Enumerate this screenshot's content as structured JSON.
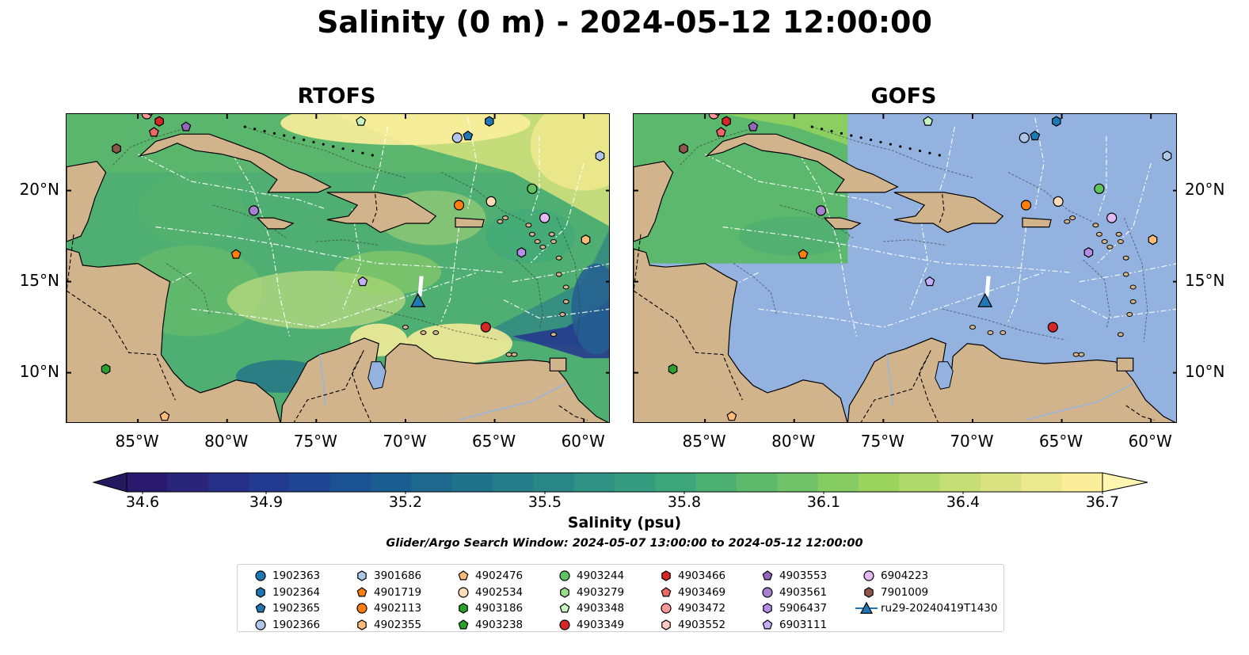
{
  "title": "Salinity (0 m) - 2024-05-12 12:00:00",
  "panels": [
    {
      "title": "RTOFS"
    },
    {
      "title": "GOFS"
    }
  ],
  "lon_ticks": [
    "85°W",
    "80°W",
    "75°W",
    "70°W",
    "65°W",
    "60°W"
  ],
  "lon_values": [
    -85,
    -80,
    -75,
    -70,
    -65,
    -60
  ],
  "lat_ticks": [
    "10°N",
    "15°N",
    "20°N"
  ],
  "lat_values": [
    10,
    15,
    20
  ],
  "extent": {
    "lon": [
      -89,
      -58.5
    ],
    "lat": [
      7.2,
      24.2
    ]
  },
  "colorbar": {
    "ticks": [
      "34.6",
      "34.9",
      "35.2",
      "35.5",
      "35.8",
      "36.1",
      "36.4",
      "36.7"
    ],
    "values": [
      34.6,
      34.9,
      35.2,
      35.5,
      35.8,
      36.1,
      36.4,
      36.7
    ],
    "label": "Salinity (psu)",
    "colors": [
      "#2a1a6e",
      "#24358f",
      "#1a5394",
      "#1f6f8b",
      "#2a8a87",
      "#3aa37b",
      "#62be6b",
      "#98d35e",
      "#cfe07b",
      "#fbee9a"
    ]
  },
  "subtitle": "Glider/Argo Search Window: 2024-05-07 13:00:00 to 2024-05-12 12:00:00",
  "colors": {
    "land": "#d2b48c",
    "gofs_ocean": "#93b2e0",
    "glider": "#1f77b4"
  },
  "legend": [
    {
      "id": "1902363",
      "marker": "circle",
      "color": "#1f77b4"
    },
    {
      "id": "1902364",
      "marker": "hexagon",
      "color": "#1f77b4"
    },
    {
      "id": "1902365",
      "marker": "pentagon",
      "color": "#1f77b4"
    },
    {
      "id": "1902366",
      "marker": "circle",
      "color": "#aec7e8"
    },
    {
      "id": "3901686",
      "marker": "hexagon",
      "color": "#aec7e8"
    },
    {
      "id": "4901719",
      "marker": "pentagon",
      "color": "#ff7f0e"
    },
    {
      "id": "4902113",
      "marker": "circle",
      "color": "#ff7f0e"
    },
    {
      "id": "4902355",
      "marker": "hexagon",
      "color": "#ffbb78"
    },
    {
      "id": "4902476",
      "marker": "pentagon",
      "color": "#ffbb78"
    },
    {
      "id": "4902534",
      "marker": "circle",
      "color": "#ffdcb8"
    },
    {
      "id": "4903186",
      "marker": "hexagon",
      "color": "#2ca02c"
    },
    {
      "id": "4903238",
      "marker": "pentagon",
      "color": "#2ca02c"
    },
    {
      "id": "4903244",
      "marker": "circle",
      "color": "#5fc35f"
    },
    {
      "id": "4903279",
      "marker": "hexagon",
      "color": "#98df8a"
    },
    {
      "id": "4903348",
      "marker": "pentagon",
      "color": "#c7f5c0"
    },
    {
      "id": "4903349",
      "marker": "circle",
      "color": "#d62728"
    },
    {
      "id": "4903466",
      "marker": "hexagon",
      "color": "#d62728"
    },
    {
      "id": "4903469",
      "marker": "pentagon",
      "color": "#ee6666"
    },
    {
      "id": "4903472",
      "marker": "circle",
      "color": "#ff9896"
    },
    {
      "id": "4903552",
      "marker": "hexagon",
      "color": "#ffc8c2"
    },
    {
      "id": "4903553",
      "marker": "pentagon",
      "color": "#9467bd"
    },
    {
      "id": "4903561",
      "marker": "circle",
      "color": "#a57fd0"
    },
    {
      "id": "5906437",
      "marker": "hexagon",
      "color": "#b58de6"
    },
    {
      "id": "6903111",
      "marker": "pentagon",
      "color": "#c5b0f5"
    },
    {
      "id": "6904223",
      "marker": "circle",
      "color": "#e3b8f5"
    },
    {
      "id": "7901009",
      "marker": "hexagon",
      "color": "#8c564b"
    },
    {
      "id": "ru29-20240419T1430",
      "marker": "triangle-line",
      "color": "#1f77b4"
    }
  ],
  "floats": [
    {
      "id": "1902364",
      "lon": -65.3,
      "lat": 23.8
    },
    {
      "id": "1902365",
      "lon": -66.5,
      "lat": 23.0
    },
    {
      "id": "1902366",
      "lon": -67.1,
      "lat": 22.9
    },
    {
      "id": "3901686",
      "lon": -59.1,
      "lat": 21.9
    },
    {
      "id": "4901719",
      "lon": -79.5,
      "lat": 16.5
    },
    {
      "id": "4902113",
      "lon": -67.0,
      "lat": 19.2
    },
    {
      "id": "4902355",
      "lon": -59.9,
      "lat": 17.3
    },
    {
      "id": "4902476",
      "lon": -83.5,
      "lat": 7.6
    },
    {
      "id": "4902534",
      "lon": -65.2,
      "lat": 19.4
    },
    {
      "id": "4903186",
      "lon": -86.8,
      "lat": 10.2
    },
    {
      "id": "4903238",
      "lon": -84.0,
      "lat": 24.6
    },
    {
      "id": "4903244",
      "lon": -62.9,
      "lat": 20.1
    },
    {
      "id": "4903348",
      "lon": -72.5,
      "lat": 23.8
    },
    {
      "id": "4903349",
      "lon": -65.5,
      "lat": 12.5
    },
    {
      "id": "4903466",
      "lon": -83.8,
      "lat": 23.8
    },
    {
      "id": "4903469",
      "lon": -84.1,
      "lat": 23.2
    },
    {
      "id": "4903472",
      "lon": -84.5,
      "lat": 24.2
    },
    {
      "id": "4903552",
      "lon": -84.3,
      "lat": 24.4
    },
    {
      "id": "4903553",
      "lon": -82.3,
      "lat": 23.5
    },
    {
      "id": "4903561",
      "lon": -78.5,
      "lat": 18.9
    },
    {
      "id": "5906437",
      "lon": -63.5,
      "lat": 16.6
    },
    {
      "id": "6903111",
      "lon": -72.4,
      "lat": 15.0
    },
    {
      "id": "6904223",
      "lon": -62.2,
      "lat": 18.5
    },
    {
      "id": "7901009",
      "lon": -86.2,
      "lat": 22.3
    }
  ],
  "glider": {
    "id": "ru29-20240419T1430",
    "lon": -69.3,
    "lat": 13.9,
    "track": [
      [
        -69.1,
        15.3
      ],
      [
        -69.2,
        14.2
      ]
    ]
  }
}
